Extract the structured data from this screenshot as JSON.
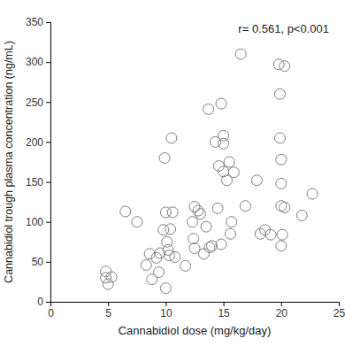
{
  "chart_data": {
    "type": "scatter",
    "x_label": "Cannabidiol dose (mg/kg/day)",
    "y_label": "Cannabidiol trough plasma concentration (ng/mL)",
    "annotation": "r= 0.561, p<0.001",
    "color": "#7f7f7f",
    "marker": "open-circle",
    "grid": false,
    "xlim": [
      0,
      25
    ],
    "ylim": [
      0,
      350
    ],
    "xticks": [
      0,
      5,
      10,
      15,
      20,
      25
    ],
    "yticks": [
      0,
      50,
      100,
      150,
      200,
      250,
      300,
      350
    ],
    "x": [
      4.8,
      4.8,
      5.0,
      5.3,
      6.5,
      7.5,
      8.3,
      8.6,
      8.8,
      9.2,
      9.4,
      9.5,
      9.8,
      9.9,
      10.0,
      10.0,
      10.1,
      10.2,
      10.3,
      10.4,
      10.5,
      10.6,
      10.8,
      11.7,
      12.3,
      12.4,
      12.5,
      12.5,
      12.8,
      13.0,
      13.3,
      13.5,
      13.7,
      13.8,
      14.0,
      14.3,
      14.5,
      14.6,
      14.8,
      14.8,
      15.0,
      15.0,
      15.0,
      15.3,
      15.5,
      15.6,
      15.7,
      15.9,
      16.5,
      16.9,
      17.9,
      18.2,
      18.6,
      19.1,
      19.8,
      19.9,
      19.9,
      20.0,
      20.0,
      20.0,
      20.0,
      20.1,
      20.3,
      20.3,
      21.8,
      22.7
    ],
    "values": [
      38,
      30,
      22,
      31,
      113,
      100,
      46,
      60,
      28,
      55,
      37,
      61,
      90,
      180,
      17,
      112,
      75,
      65,
      58,
      91,
      205,
      112,
      56,
      45,
      100,
      79,
      67,
      119,
      114,
      110,
      60,
      94,
      241,
      68,
      70,
      200,
      117,
      170,
      248,
      72,
      163,
      198,
      208,
      152,
      175,
      85,
      100,
      162,
      310,
      120,
      152,
      85,
      90,
      84,
      297,
      260,
      205,
      178,
      148,
      120,
      70,
      84,
      118,
      295,
      108,
      135
    ]
  }
}
